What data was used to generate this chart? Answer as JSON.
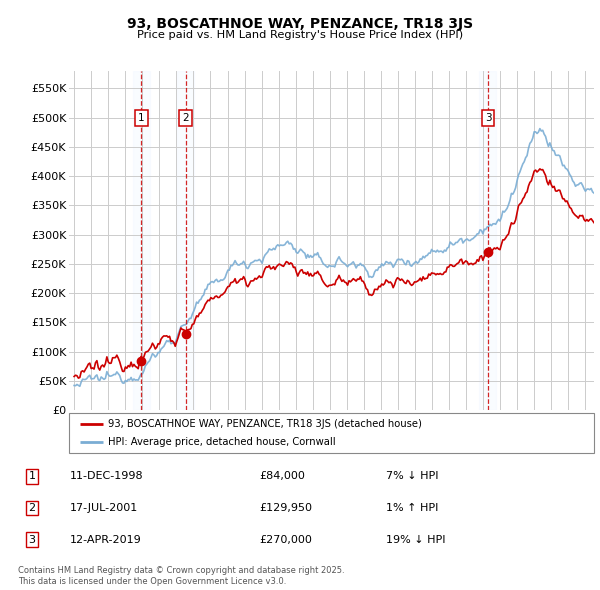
{
  "title": "93, BOSCATHNOE WAY, PENZANCE, TR18 3JS",
  "subtitle": "Price paid vs. HM Land Registry's House Price Index (HPI)",
  "ylim": [
    0,
    580000
  ],
  "yticks": [
    0,
    50000,
    100000,
    150000,
    200000,
    250000,
    300000,
    350000,
    400000,
    450000,
    500000,
    550000
  ],
  "ytick_labels": [
    "£0",
    "£50K",
    "£100K",
    "£150K",
    "£200K",
    "£250K",
    "£300K",
    "£350K",
    "£400K",
    "£450K",
    "£500K",
    "£550K"
  ],
  "xlim_start": 1994.7,
  "xlim_end": 2025.5,
  "transactions": [
    {
      "num": 1,
      "year": 1998.94,
      "price": 84000,
      "date": "11-DEC-1998",
      "amount": "£84,000",
      "pct": "7% ↓ HPI"
    },
    {
      "num": 2,
      "year": 2001.54,
      "price": 129950,
      "date": "17-JUL-2001",
      "amount": "£129,950",
      "pct": "1% ↑ HPI"
    },
    {
      "num": 3,
      "year": 2019.28,
      "price": 270000,
      "date": "12-APR-2019",
      "amount": "£270,000",
      "pct": "19% ↓ HPI"
    }
  ],
  "legend_property": "93, BOSCATHNOE WAY, PENZANCE, TR18 3JS (detached house)",
  "legend_hpi": "HPI: Average price, detached house, Cornwall",
  "footnote": "Contains HM Land Registry data © Crown copyright and database right 2025.\nThis data is licensed under the Open Government Licence v3.0.",
  "red_color": "#cc0000",
  "blue_color": "#7aadd4",
  "background_color": "#ffffff",
  "grid_color": "#cccccc",
  "shade_color": "#ddeeff"
}
